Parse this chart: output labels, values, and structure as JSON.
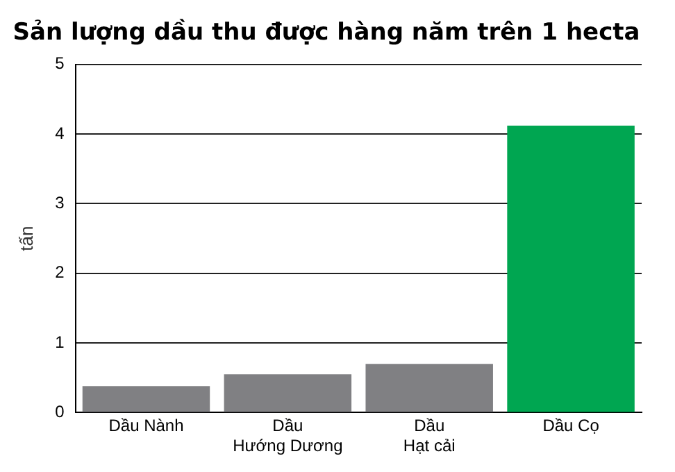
{
  "chart_data": {
    "type": "bar",
    "title": "Sản lượng dầu thu được hàng năm trên 1 hecta",
    "ylabel": "tấn",
    "categories": [
      "Dầu Nành",
      "Dầu\nHướng Dương",
      "Dầu\nHạt cải",
      "Dầu Cọ"
    ],
    "values": [
      0.38,
      0.55,
      0.7,
      4.12
    ],
    "colors": [
      "#808083",
      "#808083",
      "#808083",
      "#00a651"
    ],
    "ylim": [
      0,
      5
    ],
    "yticks": [
      0,
      1,
      2,
      3,
      4,
      5
    ],
    "grid": "y",
    "legend": false
  }
}
